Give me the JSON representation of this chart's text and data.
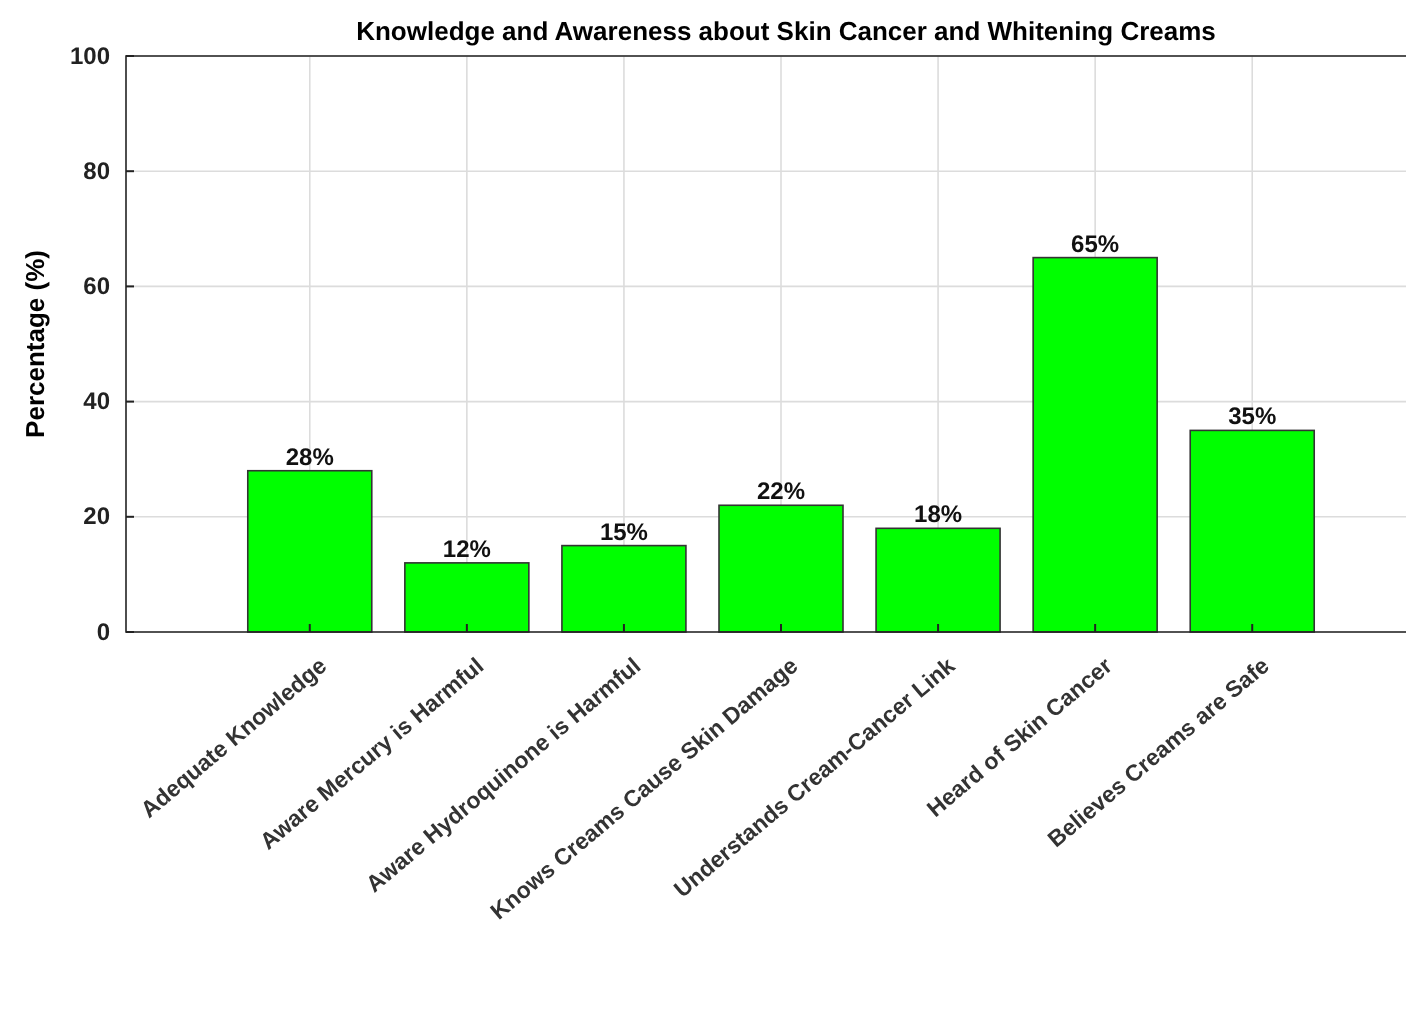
{
  "chart_data": {
    "type": "bar",
    "title": "Knowledge and Awareness about Skin Cancer and Whitening Creams",
    "ylabel": "Percentage (%)",
    "categories": [
      "Adequate Knowledge",
      "Aware Mercury is Harmful",
      "Aware Hydroquinone is Harmful",
      "Knows Creams Cause Skin Damage",
      "Understands Cream-Cancer Link",
      "Heard of Skin Cancer",
      "Believes Creams are Safe"
    ],
    "values": [
      28,
      12,
      15,
      22,
      18,
      65,
      35
    ],
    "value_labels": [
      "28%",
      "12%",
      "15%",
      "22%",
      "18%",
      "65%",
      "35%"
    ],
    "color": "#00ff00",
    "ylim": [
      0,
      100
    ],
    "yticks": [
      0,
      20,
      40,
      60,
      80,
      100
    ],
    "grid": true
  }
}
